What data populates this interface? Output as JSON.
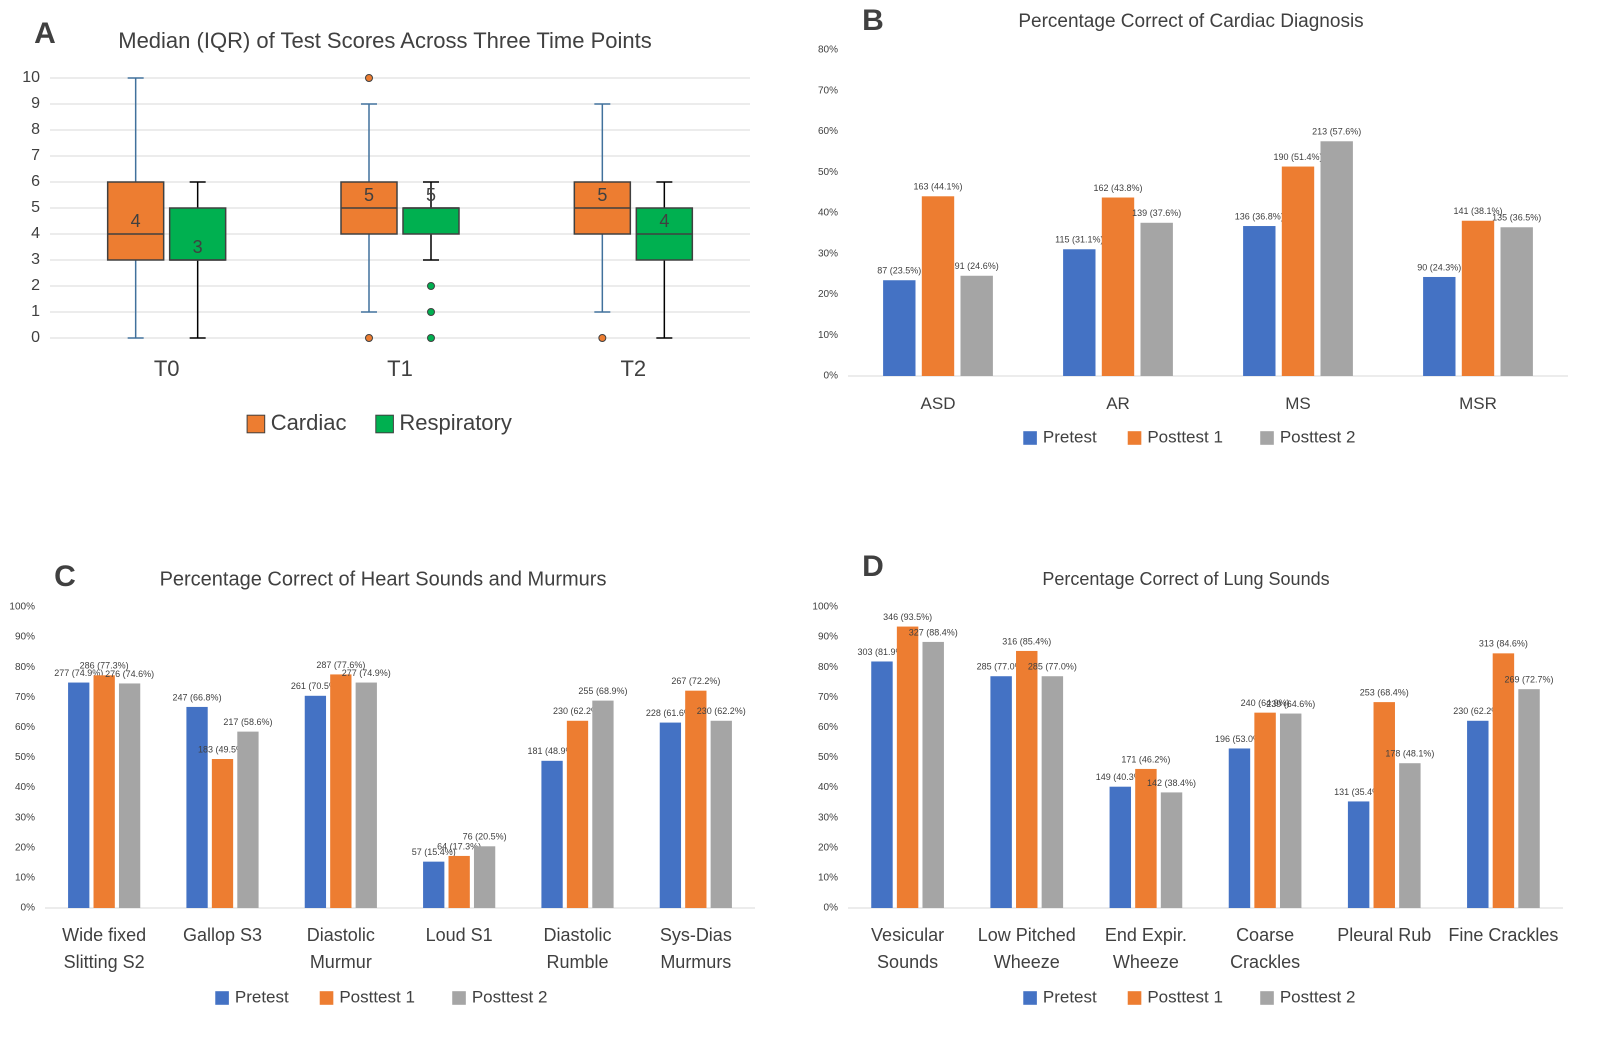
{
  "chart_data": [
    {
      "type": "box",
      "panel": "A",
      "title": "Median (IQR) of Test Scores Across Three Time Points",
      "categories": [
        "T0",
        "T1",
        "T2"
      ],
      "ylim": [
        0,
        10
      ],
      "yticks": [
        0,
        1,
        2,
        3,
        4,
        5,
        6,
        7,
        8,
        9,
        10
      ],
      "grid": true,
      "series": [
        {
          "name": "Cardiac",
          "color": "#ed7d31",
          "boxes": [
            {
              "min": 0,
              "q1": 3,
              "median": 4,
              "q3": 6,
              "max": 10,
              "outliers": []
            },
            {
              "min": 1,
              "q1": 4,
              "median": 5,
              "q3": 6,
              "max": 9,
              "outliers": [
                0,
                10
              ]
            },
            {
              "min": 1,
              "q1": 4,
              "median": 5,
              "q3": 6,
              "max": 9,
              "outliers": [
                0
              ]
            }
          ]
        },
        {
          "name": "Respiratory",
          "color": "#00b050",
          "boxes": [
            {
              "min": 0,
              "q1": 3,
              "median": 3,
              "q3": 5,
              "max": 6,
              "outliers": []
            },
            {
              "min": 3,
              "q1": 4,
              "median": 5,
              "q3": 5,
              "max": 6,
              "outliers": [
                0,
                1,
                2
              ]
            },
            {
              "min": 0,
              "q1": 3,
              "median": 4,
              "q3": 5,
              "max": 6,
              "outliers": []
            }
          ]
        }
      ]
    },
    {
      "type": "bar",
      "panel": "B",
      "title": "Percentage Correct of Cardiac Diagnosis",
      "categories": [
        "ASD",
        "AR",
        "MS",
        "MSR"
      ],
      "ylim": [
        0,
        80
      ],
      "grid": false,
      "yticks": [
        {
          "value": 0,
          "label": "0%"
        },
        {
          "value": 10,
          "label": "10%"
        },
        {
          "value": 20,
          "label": "20%"
        },
        {
          "value": 30,
          "label": "30%"
        },
        {
          "value": 40,
          "label": "40%"
        },
        {
          "value": 50,
          "label": "50%"
        },
        {
          "value": 60,
          "label": "60%"
        },
        {
          "value": 70,
          "label": "70%"
        },
        {
          "value": 80,
          "label": "80%"
        }
      ],
      "series": [
        {
          "name": "Pretest",
          "color": "#4472c4",
          "values": [
            23.5,
            31.1,
            36.8,
            24.3
          ],
          "value_labels": [
            "87 (23.5%)",
            "115 (31.1%)",
            "136 (36.8%)",
            "90 (24.3%)"
          ]
        },
        {
          "name": "Posttest 1",
          "color": "#ed7d31",
          "values": [
            44.1,
            43.8,
            51.4,
            38.1
          ],
          "value_labels": [
            "163 (44.1%)",
            "162 (43.8%)",
            "190 (51.4%)",
            "141 (38.1%)"
          ]
        },
        {
          "name": "Posttest 2",
          "color": "#a5a5a5",
          "values": [
            24.6,
            37.6,
            57.6,
            36.5
          ],
          "value_labels": [
            "91 (24.6%)",
            "139 (37.6%)",
            "213 (57.6%)",
            "135 (36.5%)"
          ]
        }
      ]
    },
    {
      "type": "bar",
      "panel": "C",
      "title": "Percentage Correct of Heart Sounds and Murmurs",
      "categories": [
        "Wide fixed Slitting S2",
        "Gallop S3",
        "Diastolic Murmur",
        "Loud S1",
        "Diastolic Rumble",
        "Sys-Dias Murmurs"
      ],
      "ylim": [
        0,
        100
      ],
      "grid": false,
      "yticks": [
        {
          "value": 0,
          "label": "0%"
        },
        {
          "value": 10,
          "label": "10%"
        },
        {
          "value": 20,
          "label": "20%"
        },
        {
          "value": 30,
          "label": "30%"
        },
        {
          "value": 40,
          "label": "40%"
        },
        {
          "value": 50,
          "label": "50%"
        },
        {
          "value": 60,
          "label": "60%"
        },
        {
          "value": 70,
          "label": "70%"
        },
        {
          "value": 80,
          "label": "80%"
        },
        {
          "value": 90,
          "label": "90%"
        },
        {
          "value": 100,
          "label": "100%"
        }
      ],
      "series": [
        {
          "name": "Pretest",
          "color": "#4472c4",
          "values": [
            74.9,
            66.8,
            70.5,
            15.4,
            48.9,
            61.6
          ],
          "value_labels": [
            "277 (74.9%)",
            "247 (66.8%)",
            "261 (70.5%)",
            "57 (15.4%)",
            "181 (48.9%)",
            "228 (61.6%)"
          ]
        },
        {
          "name": "Posttest 1",
          "color": "#ed7d31",
          "values": [
            77.3,
            49.5,
            77.6,
            17.3,
            62.2,
            72.2
          ],
          "value_labels": [
            "286 (77.3%)",
            "183 (49.5%)",
            "287 (77.6%)",
            "64 (17.3%)",
            "230 (62.2%)",
            "267 (72.2%)"
          ]
        },
        {
          "name": "Posttest 2",
          "color": "#a5a5a5",
          "values": [
            74.6,
            58.6,
            74.9,
            20.5,
            68.9,
            62.2
          ],
          "value_labels": [
            "276 (74.6%)",
            "217 (58.6%)",
            "277 (74.9%)",
            "76 (20.5%)",
            "255 (68.9%)",
            "230 (62.2%)"
          ]
        }
      ]
    },
    {
      "type": "bar",
      "panel": "D",
      "title": "Percentage Correct of Lung Sounds",
      "categories": [
        "Vesicular Sounds",
        "Low Pitched Wheeze",
        "End Expir. Wheeze",
        "Coarse Crackles",
        "Pleural Rub",
        "Fine Crackles"
      ],
      "ylim": [
        0,
        100
      ],
      "grid": false,
      "yticks": [
        {
          "value": 0,
          "label": "0%"
        },
        {
          "value": 10,
          "label": "10%"
        },
        {
          "value": 20,
          "label": "20%"
        },
        {
          "value": 30,
          "label": "30%"
        },
        {
          "value": 40,
          "label": "40%"
        },
        {
          "value": 50,
          "label": "50%"
        },
        {
          "value": 60,
          "label": "60%"
        },
        {
          "value": 70,
          "label": "70%"
        },
        {
          "value": 80,
          "label": "80%"
        },
        {
          "value": 90,
          "label": "90%"
        },
        {
          "value": 100,
          "label": "100%"
        }
      ],
      "series": [
        {
          "name": "Pretest",
          "color": "#4472c4",
          "values": [
            81.9,
            77.0,
            40.3,
            53.0,
            35.4,
            62.2
          ],
          "value_labels": [
            "303 (81.9%)",
            "285 (77.0%)",
            "149 (40.3%)",
            "196 (53.0%)",
            "131 (35.4%)",
            "230 (62.2%)"
          ]
        },
        {
          "name": "Posttest 1",
          "color": "#ed7d31",
          "values": [
            93.5,
            85.4,
            46.2,
            64.9,
            68.4,
            84.6
          ],
          "value_labels": [
            "346 (93.5%)",
            "316 (85.4%)",
            "171 (46.2%)",
            "240 (64.9%)",
            "253 (68.4%)",
            "313 (84.6%)"
          ]
        },
        {
          "name": "Posttest 2",
          "color": "#a5a5a5",
          "values": [
            88.4,
            77.0,
            38.4,
            64.6,
            48.1,
            72.7
          ],
          "value_labels": [
            "327 (88.4%)",
            "285 (77.0%)",
            "142 (38.4%)",
            "239 (64.6%)",
            "178 (48.1%)",
            "269 (72.7%)"
          ]
        }
      ]
    }
  ]
}
